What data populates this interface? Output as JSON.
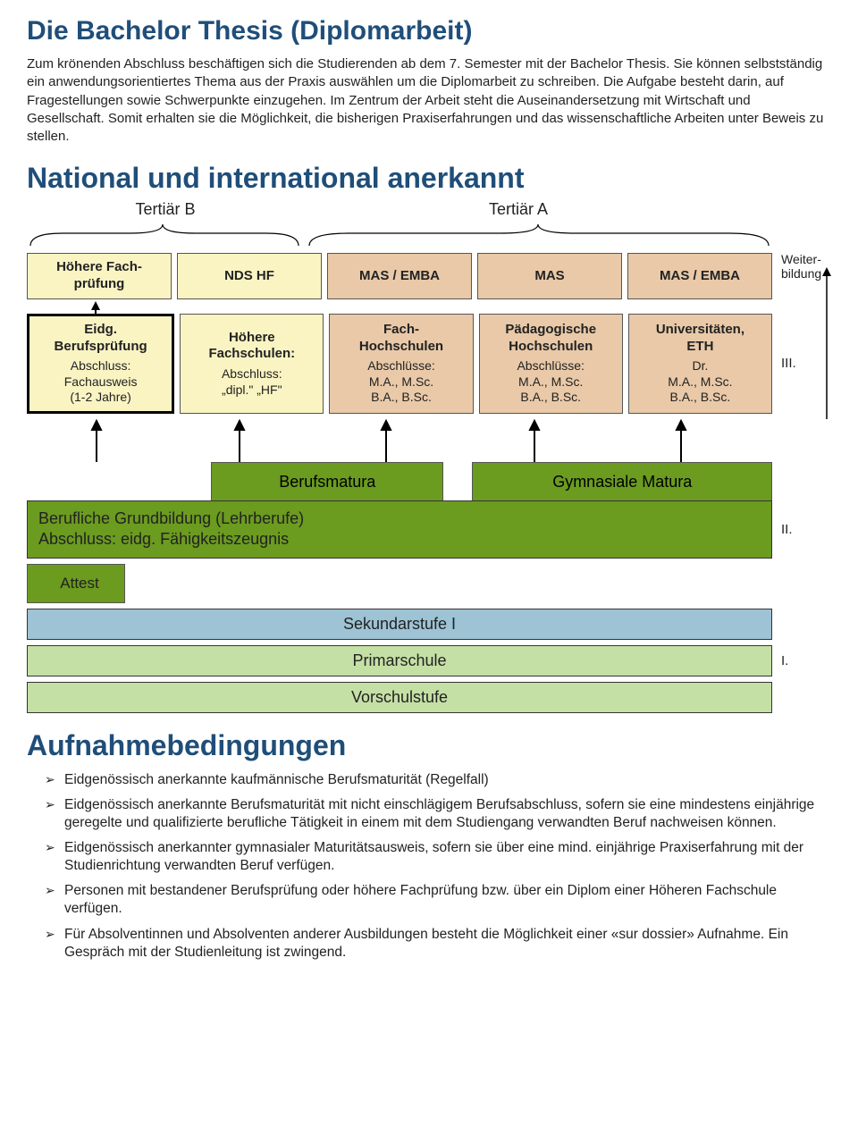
{
  "title1": "Die Bachelor Thesis (Diplomarbeit)",
  "para1": "Zum krönenden Abschluss beschäftigen sich die Studierenden ab dem 7. Semester mit der Bachelor Thesis. Sie können selbstständig ein anwendungsorientiertes Thema aus der Praxis auswählen um die Diplomarbeit zu schreiben. Die Aufgabe besteht darin, auf Fragestellungen sowie Schwerpunkte einzugehen. Im Zentrum der Arbeit steht die Auseinandersetzung mit Wirtschaft und Gesellschaft. Somit erhalten sie die Möglichkeit, die bisherigen Praxiserfahrungen und das wissenschaftliche Arbeiten unter Beweis zu stellen.",
  "title2": "National und international anerkannt",
  "tertB": "Tertiär B",
  "tertA": "Tertiär A",
  "weiterbildung": "Weiter-\nbildung",
  "levels": {
    "I": "I.",
    "II": "II.",
    "III": "III."
  },
  "colors": {
    "yellow": "#faf4c3",
    "tan": "#e9c9a8",
    "green": "#6b9b1f",
    "blue": "#9dc3d4",
    "lightgreen": "#c5e0a5",
    "headingBlue": "#1f4e79"
  },
  "row1": [
    {
      "title": "Höhere Fach-\nprüfung",
      "bg": "yellow"
    },
    {
      "title": "NDS HF",
      "bg": "yellow"
    },
    {
      "title": "MAS / EMBA",
      "bg": "tan"
    },
    {
      "title": "MAS",
      "bg": "tan"
    },
    {
      "title": "MAS / EMBA",
      "bg": "tan"
    }
  ],
  "row2": [
    {
      "title": "Eidg.\nBerufsprüfung",
      "sub": "Abschluss:\nFachausweis\n(1-2 Jahre)",
      "bg": "yellow",
      "thick": true
    },
    {
      "title": "Höhere\nFachschulen:",
      "sub": "Abschluss:\n„dipl.\" „HF\"",
      "bg": "yellow"
    },
    {
      "title": "Fach-\nHochschulen",
      "sub": "Abschlüsse:\nM.A., M.Sc.\nB.A., B.Sc.",
      "bg": "tan"
    },
    {
      "title": "Pädagogische\nHochschulen",
      "sub": "Abschlüsse:\nM.A., M.Sc.\nB.A., B.Sc.",
      "bg": "tan"
    },
    {
      "title": "Universitäten,\nETH",
      "sub": "Dr.\nM.A., M.Sc.\nB.A., B.Sc.",
      "bg": "tan"
    }
  ],
  "matura": {
    "berufs": "Berufsmatura",
    "gym": "Gymnasiale Matura"
  },
  "grundbildung": {
    "line1": "Berufliche Grundbildung (Lehrberufe)",
    "line2": "Abschluss: eidg. Fähigkeitszeugnis"
  },
  "attest": "Attest",
  "sek": "Sekundarstufe I",
  "prim": "Primarschule",
  "vor": "Vorschulstufe",
  "title3": "Aufnahmebedingungen",
  "bullets": [
    "Eidgenössisch anerkannte kaufmännische Berufsmaturität (Regelfall)",
    "Eidgenössisch anerkannte Berufsmaturität mit nicht einschlägigem Berufsabschluss, sofern sie eine mindestens einjährige geregelte und qualifizierte berufliche Tätigkeit in einem mit dem Studiengang verwandten Beruf nachweisen können.",
    "Eidgenössisch anerkannter gymnasialer Maturitätsausweis, sofern sie über eine mind. einjährige Praxiserfahrung mit der Studienrichtung verwandten Beruf verfügen.",
    "Personen mit bestandener Berufsprüfung oder höhere Fachprüfung bzw. über ein Diplom einer Höheren Fachschule verfügen.",
    "Für Absolventinnen und Absolventen anderer Ausbildungen besteht die Möglichkeit einer «sur dossier» Aufnahme. Ein Gespräch mit der Studienleitung ist zwingend."
  ]
}
